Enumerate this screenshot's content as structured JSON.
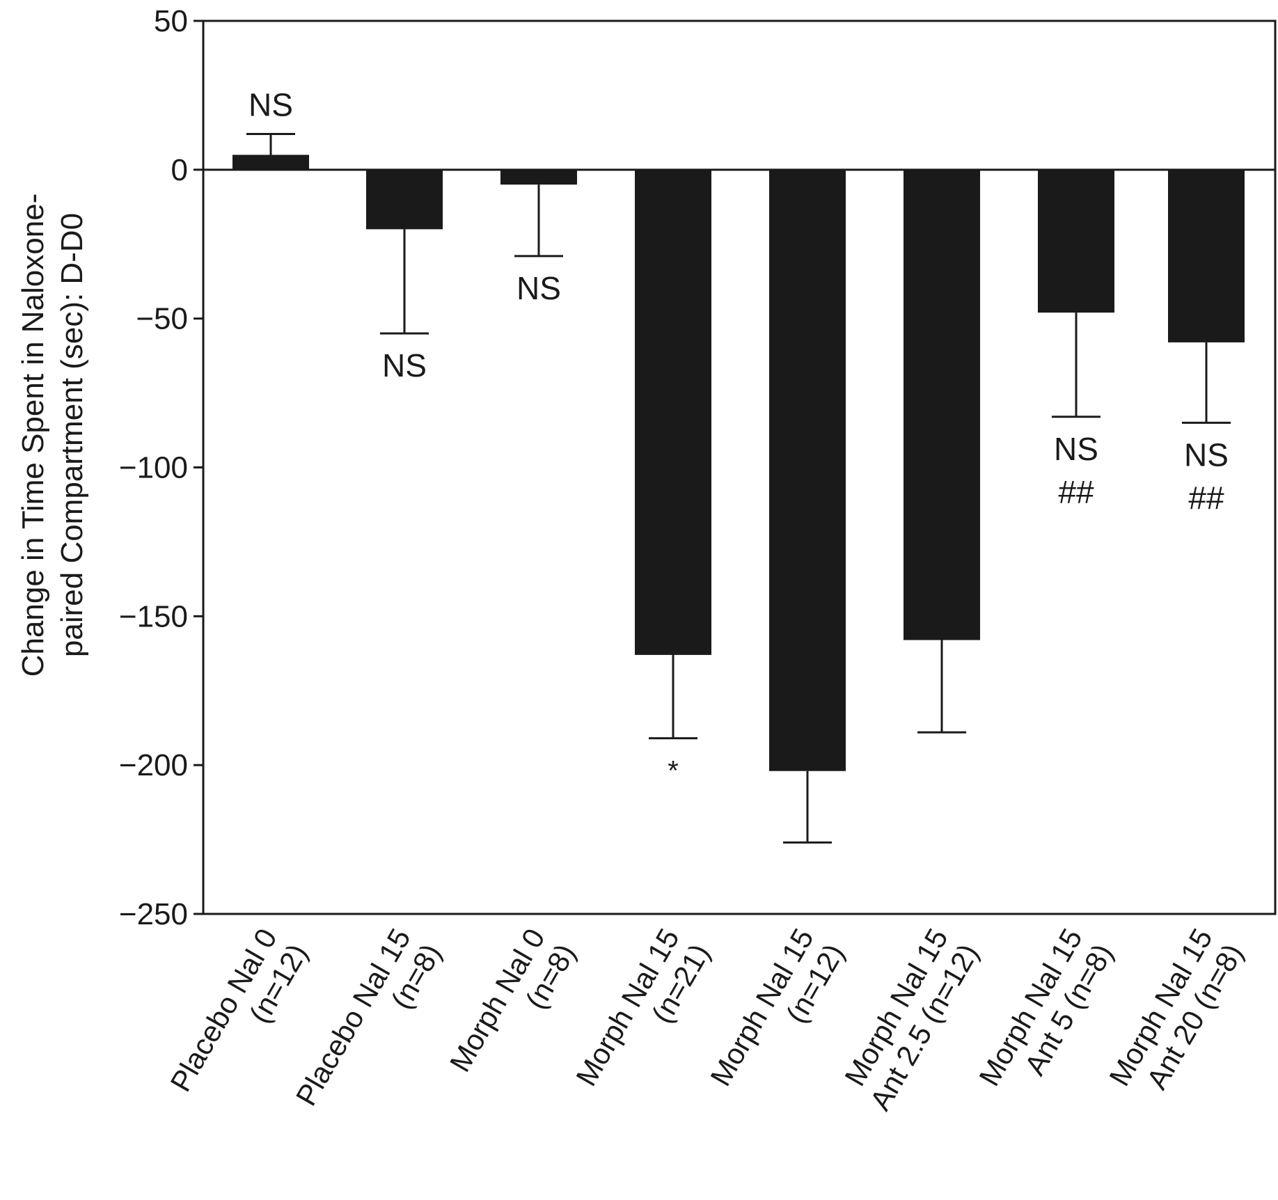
{
  "chart_data": {
    "type": "bar",
    "ylabel_lines": [
      "Change in Time Spent in Naloxone-",
      "paired Compartment (sec): D-D0"
    ],
    "xlabel": "",
    "ylim": [
      -250,
      50
    ],
    "yticks": [
      50,
      0,
      -50,
      -100,
      -150,
      -200,
      -250
    ],
    "ytick_labels": [
      "50",
      "0",
      "−50",
      "−100",
      "−150",
      "−200",
      "−250"
    ],
    "grid": false,
    "bar_color": "#1a1a1a",
    "categories": [
      {
        "line1": "Placebo Nal 0",
        "line2": "(n=12)"
      },
      {
        "line1": "Placebo Nal 15",
        "line2": "(n=8)"
      },
      {
        "line1": "Morph Nal 0",
        "line2": "(n=8)"
      },
      {
        "line1": "Morph Nal 15",
        "line2": "(n=21)"
      },
      {
        "line1": "Morph Nal 15",
        "line2": "(n=12)"
      },
      {
        "line1": "Morph Nal 15",
        "line2": "Ant 2.5 (n=12)"
      },
      {
        "line1": "Morph Nal 15",
        "line2": "Ant 5 (n=8)"
      },
      {
        "line1": "Morph Nal 15",
        "line2": "Ant 20 (n=8)"
      }
    ],
    "values": [
      5,
      -20,
      -5,
      -163,
      -202,
      -158,
      -48,
      -58
    ],
    "errors": [
      7,
      35,
      24,
      28,
      24,
      31,
      35,
      27
    ],
    "annotations": [
      [
        "NS"
      ],
      [
        "NS"
      ],
      [
        "NS"
      ],
      [
        "*"
      ],
      [],
      [],
      [
        "NS",
        "##"
      ],
      [
        "NS",
        "##"
      ]
    ]
  }
}
